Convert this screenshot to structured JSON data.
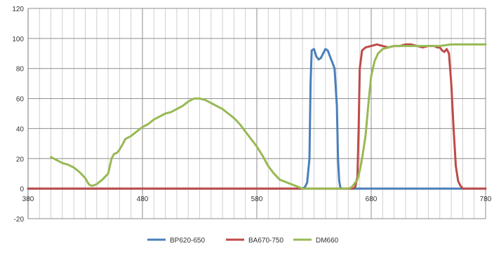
{
  "chart_data": {
    "type": "line",
    "title": "",
    "xlabel": "",
    "ylabel": "",
    "xlim": [
      380,
      780
    ],
    "ylim": [
      -20,
      120
    ],
    "x_ticks": [
      380,
      480,
      580,
      680,
      780
    ],
    "x_tick_labels": [
      "380",
      "480",
      "580",
      "680",
      "780"
    ],
    "y_ticks": [
      -20,
      0,
      20,
      40,
      60,
      80,
      100,
      120
    ],
    "y_tick_labels": [
      "-20",
      "0",
      "20",
      "40",
      "60",
      "80",
      "100",
      "120"
    ],
    "x_minor_step": 10,
    "grid": true,
    "legend_position": "bottom",
    "series": [
      {
        "name": "BP620-650",
        "color": "#4a7ebb",
        "x": [
          380,
          620,
          622,
          624,
          626,
          627,
          628,
          630,
          632,
          634,
          636,
          638,
          640,
          642,
          644,
          646,
          648,
          650,
          651,
          652,
          653,
          654,
          655,
          656,
          660,
          780
        ],
        "y": [
          0,
          0,
          1,
          4,
          20,
          70,
          92,
          93,
          88,
          86,
          87,
          90,
          93,
          92,
          88,
          84,
          80,
          55,
          20,
          5,
          1,
          0,
          0,
          0,
          0,
          0
        ]
      },
      {
        "name": "BA670-750",
        "color": "#be4b48",
        "x": [
          380,
          664,
          666,
          668,
          669,
          670,
          672,
          675,
          680,
          685,
          690,
          695,
          700,
          705,
          710,
          715,
          720,
          725,
          730,
          735,
          738,
          740,
          742,
          744,
          746,
          748,
          750,
          752,
          754,
          756,
          758,
          760,
          765,
          780
        ],
        "y": [
          0,
          0,
          1,
          8,
          40,
          80,
          92,
          94,
          95,
          96,
          95,
          94,
          95,
          95,
          96,
          96,
          95,
          94,
          95,
          95,
          94,
          94,
          92,
          91,
          93,
          90,
          70,
          40,
          15,
          5,
          2,
          0,
          0,
          0
        ]
      },
      {
        "name": "DM660",
        "color": "#98b954",
        "x": [
          400,
          405,
          410,
          415,
          420,
          425,
          430,
          433,
          435,
          437,
          440,
          445,
          450,
          453,
          455,
          458,
          460,
          463,
          465,
          470,
          475,
          480,
          485,
          490,
          495,
          500,
          505,
          510,
          515,
          520,
          525,
          530,
          535,
          540,
          545,
          550,
          555,
          560,
          565,
          570,
          575,
          580,
          585,
          590,
          595,
          600,
          620,
          640,
          650,
          655,
          660,
          663,
          665,
          668,
          670,
          672,
          675,
          678,
          680,
          683,
          686,
          690,
          695,
          700,
          710,
          720,
          730,
          740,
          750,
          760,
          770,
          780
        ],
        "y": [
          21,
          19,
          17,
          16,
          14,
          11,
          7,
          3,
          2,
          2,
          3,
          6,
          10,
          20,
          23,
          24,
          26,
          30,
          33,
          35,
          38,
          41,
          43,
          46,
          48,
          50,
          51,
          53,
          55,
          58,
          60,
          60,
          59,
          57,
          55,
          53,
          50,
          47,
          43,
          38,
          33,
          28,
          22,
          15,
          10,
          6,
          0,
          0,
          0,
          0,
          0,
          1,
          3,
          6,
          12,
          20,
          35,
          60,
          75,
          85,
          90,
          93,
          94,
          95,
          95,
          95,
          95,
          95,
          96,
          96,
          96,
          96
        ]
      }
    ]
  }
}
